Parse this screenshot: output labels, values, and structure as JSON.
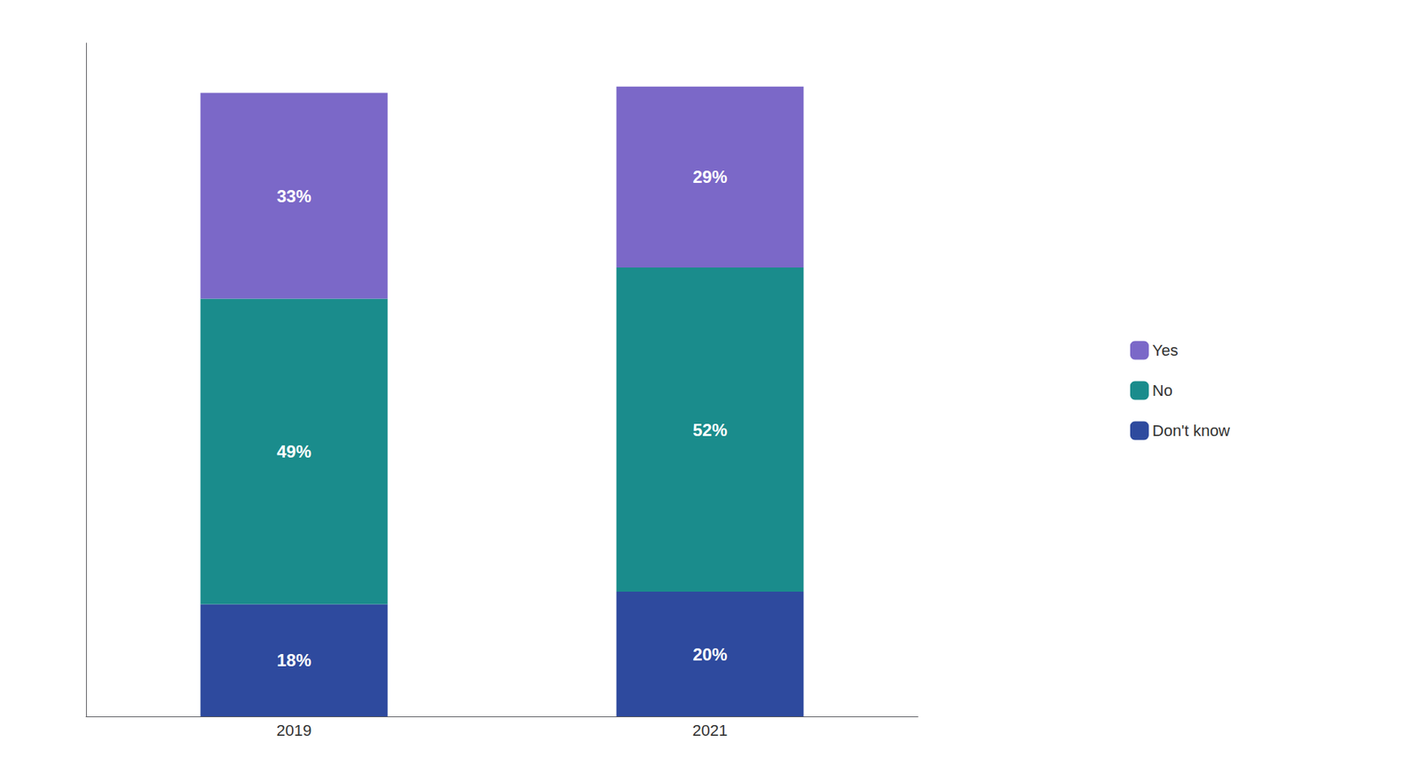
{
  "chart_data": {
    "type": "bar",
    "stacked": true,
    "categories": [
      "2019",
      "2021"
    ],
    "series": [
      {
        "name": "Don't know",
        "color": "#2E4A9E",
        "values": [
          18,
          20
        ],
        "value_labels": [
          "18%",
          "20%"
        ]
      },
      {
        "name": "No",
        "color": "#1A8C8C",
        "values": [
          49,
          52
        ],
        "value_labels": [
          "49%",
          "52%"
        ]
      },
      {
        "name": "Yes",
        "color": "#7B68C8",
        "values": [
          33,
          29
        ],
        "value_labels": [
          "33%",
          "29%"
        ]
      }
    ],
    "ylim": [
      0,
      108
    ],
    "grid": false,
    "legend": "right",
    "data_labels": true,
    "tick_labels": "x"
  }
}
